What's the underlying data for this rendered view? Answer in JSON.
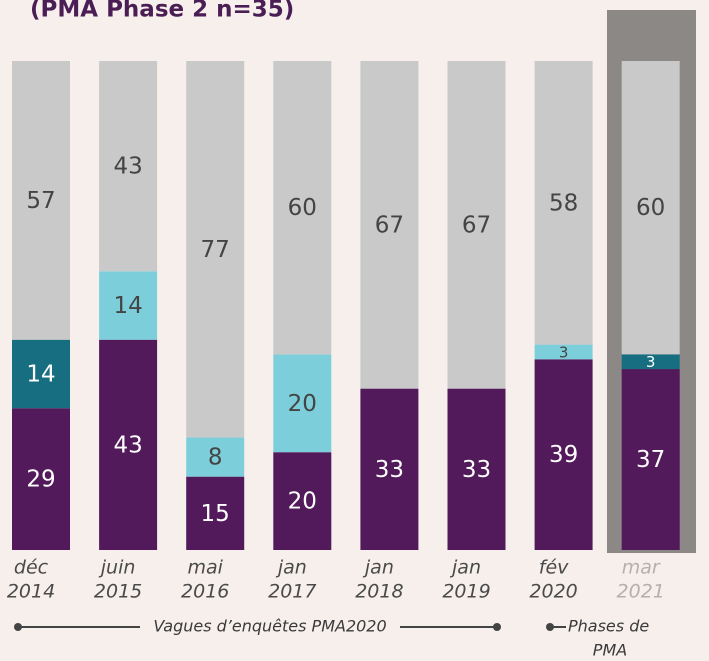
{
  "chart_data": {
    "type": "stacked-bar",
    "title": "(PMA Phase 2 n=35)",
    "categories": [
      [
        "déc",
        "2014"
      ],
      [
        "juin",
        "2015"
      ],
      [
        "mai",
        "2016"
      ],
      [
        "jan",
        "2017"
      ],
      [
        "jan",
        "2018"
      ],
      [
        "jan",
        "2019"
      ],
      [
        "fév",
        "2020"
      ],
      [
        "mar",
        "2021"
      ]
    ],
    "series": [
      {
        "color": "#521a5a",
        "label_color": "#ffffff",
        "values": [
          29,
          43,
          15,
          20,
          33,
          33,
          39,
          37
        ]
      },
      {
        "color": "#166e80",
        "label_color": "#ffffff",
        "values": [
          14,
          null,
          null,
          null,
          null,
          null,
          null,
          3
        ]
      },
      {
        "color": "#7ccfda",
        "label_color": "#444444",
        "values": [
          null,
          14,
          8,
          20,
          null,
          null,
          3,
          null
        ]
      },
      {
        "color": "#c9c9c9",
        "label_color": "#444444",
        "values": [
          57,
          43,
          77,
          60,
          67,
          67,
          58,
          60
        ]
      }
    ],
    "ylim": [
      0,
      100
    ],
    "annotations": {
      "waves": "Vagues d’enquêtes PMA2020",
      "phases": [
        "Phases de",
        "PMA"
      ]
    }
  }
}
